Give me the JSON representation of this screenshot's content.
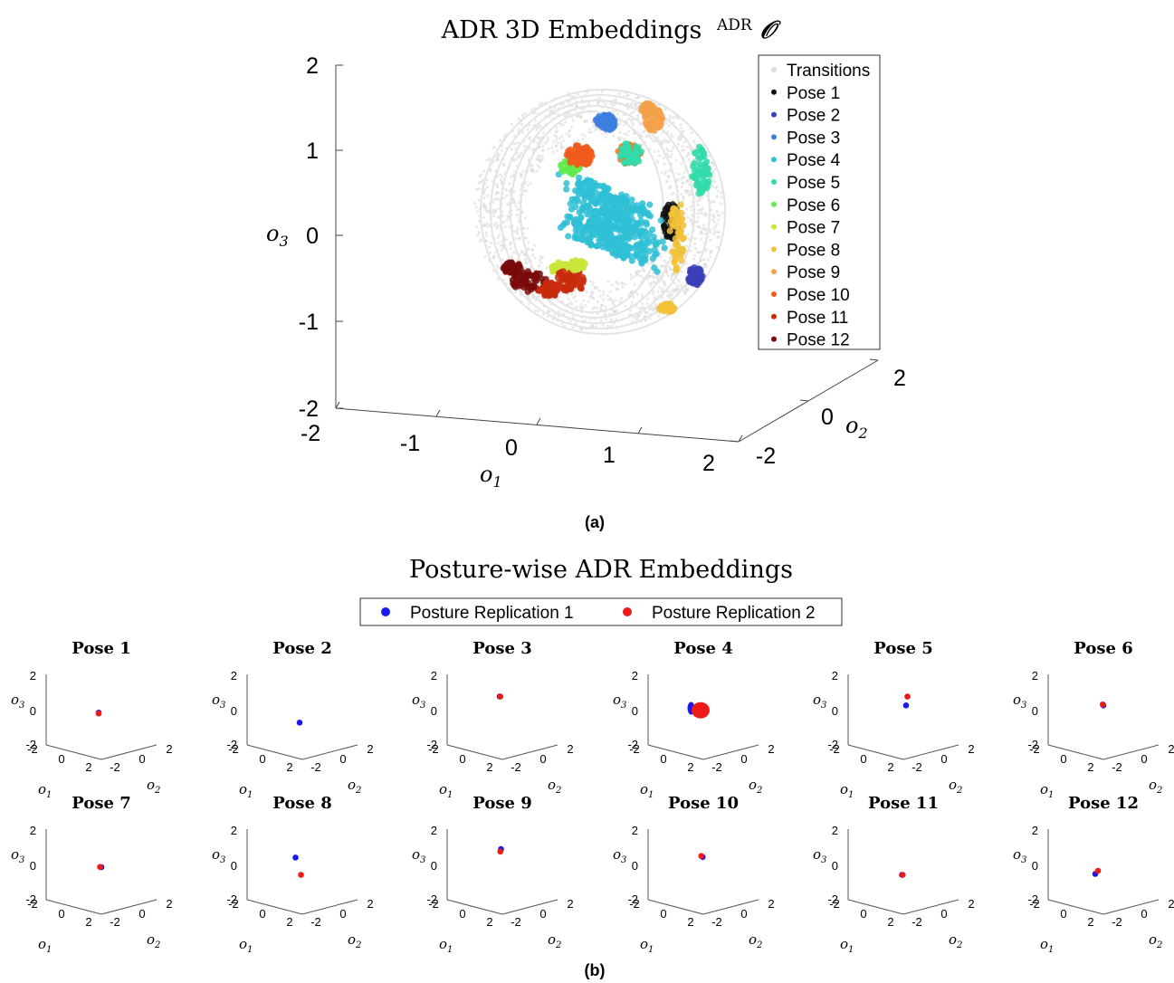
{
  "figure": {
    "caption_a": "(a)",
    "caption_b": "(b)"
  },
  "chart_data": [
    {
      "type": "scatter",
      "projection": "3d",
      "title": "ADR 3D Embeddings",
      "title_superscript": "ADR",
      "title_symbol": "𝒪",
      "xlabel": "o1",
      "ylabel": "o2",
      "zlabel": "o3",
      "xlim": [
        -2,
        2
      ],
      "ylim": [
        -2,
        2
      ],
      "zlim": [
        -2,
        2
      ],
      "x_ticks": [
        "-2",
        "-1",
        "0",
        "1",
        "2"
      ],
      "y_ticks": [
        "-2",
        "0",
        "2"
      ],
      "z_ticks": [
        "2",
        "1",
        "0",
        "-1",
        "-2"
      ],
      "legend_position": "top-right",
      "series": [
        {
          "name": "Transitions",
          "color": "#dcdcdc",
          "shape": "sphere shell",
          "center": [
            0,
            0,
            0
          ],
          "radius": 1
        },
        {
          "name": "Pose 1",
          "color": "#111111",
          "center": [
            0.55,
            -0.15,
            0.12
          ]
        },
        {
          "name": "Pose 2",
          "color": "#3b3fb8",
          "center": [
            0.85,
            0.1,
            -0.45
          ]
        },
        {
          "name": "Pose 3",
          "color": "#3d7fe0",
          "center": [
            0.05,
            0.45,
            1.0
          ]
        },
        {
          "name": "Pose 4",
          "color": "#2fc0d6",
          "center": [
            0.05,
            -0.2,
            0.5
          ]
        },
        {
          "name": "Pose 5",
          "color": "#33dba9",
          "center": [
            0.6,
            0.55,
            0.72
          ]
        },
        {
          "name": "Pose 6",
          "color": "#63ea4e",
          "center": [
            -0.35,
            -0.1,
            0.8
          ]
        },
        {
          "name": "Pose 7",
          "color": "#c8e53a",
          "center": [
            -0.4,
            -0.3,
            -0.3
          ]
        },
        {
          "name": "Pose 8",
          "color": "#f2c23a",
          "center": [
            0.75,
            0.1,
            0.05
          ]
        },
        {
          "name": "Pose 9",
          "color": "#f4a14a",
          "center": [
            0.45,
            0.8,
            1.1
          ]
        },
        {
          "name": "Pose 10",
          "color": "#f05a1c",
          "center": [
            -0.25,
            0.0,
            0.85
          ]
        },
        {
          "name": "Pose 11",
          "color": "#c92a0d",
          "center": [
            -0.3,
            -0.35,
            -0.45
          ]
        },
        {
          "name": "Pose 12",
          "color": "#7a0a0a",
          "center": [
            -0.75,
            -0.1,
            -0.35
          ]
        }
      ]
    },
    {
      "type": "scatter",
      "projection": "3d",
      "title": "Posture-wise ADR Embeddings",
      "xlabel": "o1",
      "ylabel": "o2",
      "zlabel": "o3",
      "xlim": [
        -2,
        2
      ],
      "ylim": [
        -2,
        2
      ],
      "zlim": [
        -2,
        2
      ],
      "legend_position": "top-center",
      "legend": [
        {
          "name": "Posture Replication 1",
          "color": "#1a1aee"
        },
        {
          "name": "Posture Replication 2",
          "color": "#ee1a1a"
        }
      ],
      "panels": [
        {
          "title": "Pose 1",
          "rep1": [
            0.3,
            0.1,
            0.1
          ],
          "rep2": [
            0.3,
            0.1,
            0.05
          ]
        },
        {
          "title": "Pose 2",
          "rep1": [
            0.4,
            0.2,
            -0.5
          ]
        },
        {
          "title": "Pose 3",
          "rep1": [
            0.5,
            0.3,
            1.0
          ],
          "rep2": [
            0.45,
            0.3,
            1.0
          ]
        },
        {
          "title": "Pose 4",
          "rep1": [
            0.9,
            0.0,
            0.3
          ],
          "rep2": [
            0.0,
            -0.2,
            0.3
          ]
        },
        {
          "title": "Pose 5",
          "rep1": [
            0.2,
            0.4,
            0.5
          ],
          "rep2": [
            0.2,
            0.5,
            1.0
          ]
        },
        {
          "title": "Pose 6",
          "rep1": [
            0.3,
            0.3,
            0.5
          ],
          "rep2": [
            0.35,
            0.3,
            0.55
          ]
        },
        {
          "title": "Pose 7",
          "rep1": [
            -0.2,
            -0.2,
            0.2
          ],
          "rep2": [
            -0.1,
            -0.2,
            0.2
          ]
        },
        {
          "title": "Pose 8",
          "rep1": [
            0.8,
            0.3,
            0.6
          ],
          "rep2": [
            0.1,
            0.0,
            -0.3
          ]
        },
        {
          "title": "Pose 9",
          "rep1": [
            0.55,
            0.45,
            1.1
          ],
          "rep2": [
            0.6,
            0.45,
            0.95
          ]
        },
        {
          "title": "Pose 10",
          "rep1": [
            0.25,
            0.2,
            0.7
          ],
          "rep2": [
            0.35,
            0.2,
            0.75
          ]
        },
        {
          "title": "Pose 11",
          "rep1": [
            0.1,
            0.0,
            -0.3
          ],
          "rep2": [
            0.05,
            0.0,
            -0.3
          ]
        },
        {
          "title": "Pose 12",
          "rep1": [
            0.6,
            0.0,
            -0.3
          ],
          "rep2": [
            0.4,
            0.0,
            -0.1
          ]
        }
      ],
      "panel_axis_ticks": {
        "o1": [
          "-2",
          "0",
          "2"
        ],
        "o2": [
          "-2",
          "0",
          "2"
        ],
        "o3": [
          "2",
          "0",
          "-2"
        ]
      }
    }
  ]
}
